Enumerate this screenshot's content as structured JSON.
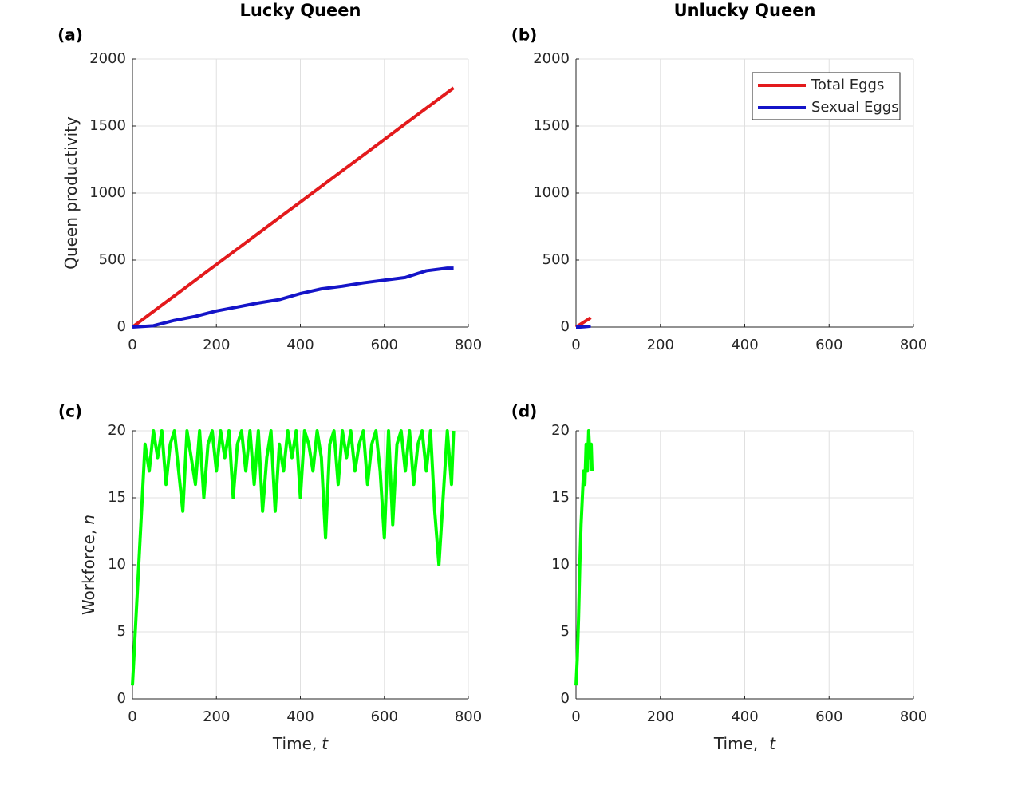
{
  "chart_data": [
    {
      "type": "line",
      "title": "Lucky Queen",
      "panel": "(a)",
      "ylabel": "Queen productivity",
      "x": [
        0,
        50,
        100,
        150,
        200,
        250,
        300,
        350,
        400,
        450,
        500,
        550,
        600,
        650,
        700,
        750,
        765
      ],
      "series": [
        {
          "color": "#e31a1c",
          "values": [
            0,
            117,
            233,
            350,
            467,
            583,
            700,
            817,
            933,
            1050,
            1167,
            1283,
            1400,
            1517,
            1633,
            1750,
            1785
          ]
        },
        {
          "color": "#1414c8",
          "values": [
            0,
            10,
            50,
            80,
            120,
            150,
            180,
            205,
            250,
            285,
            305,
            330,
            350,
            370,
            420,
            440,
            440
          ]
        }
      ],
      "xlim": [
        0,
        800
      ],
      "ylim": [
        0,
        2000
      ],
      "xticks": [
        0,
        200,
        400,
        600,
        800
      ],
      "yticks": [
        0,
        500,
        1000,
        1500,
        2000
      ],
      "grid": true
    },
    {
      "type": "line",
      "title": "Unlucky Queen",
      "panel": "(b)",
      "legend": "northeast",
      "x": [
        0,
        10,
        20,
        30,
        35
      ],
      "series": [
        {
          "name": "Total Eggs",
          "color": "#e31a1c",
          "values": [
            0,
            20,
            40,
            60,
            70
          ]
        },
        {
          "name": "Sexual Eggs",
          "color": "#1414c8",
          "values": [
            0,
            0,
            2,
            5,
            8
          ]
        }
      ],
      "xlim": [
        0,
        800
      ],
      "ylim": [
        0,
        2000
      ],
      "xticks": [
        0,
        200,
        400,
        600,
        800
      ],
      "yticks": [
        0,
        500,
        1000,
        1500,
        2000
      ],
      "grid": true
    },
    {
      "type": "line",
      "panel": "(c)",
      "ylabel": "Workforce,",
      "ylabel_italic": "n",
      "xlabel": "Time,",
      "xlabel_italic": "t",
      "x": [
        0,
        10,
        20,
        30,
        40,
        50,
        60,
        70,
        80,
        90,
        100,
        110,
        120,
        130,
        140,
        150,
        160,
        170,
        180,
        190,
        200,
        210,
        220,
        230,
        240,
        250,
        260,
        270,
        280,
        290,
        300,
        310,
        320,
        330,
        340,
        350,
        360,
        370,
        380,
        390,
        400,
        410,
        420,
        430,
        440,
        450,
        460,
        470,
        480,
        490,
        500,
        510,
        520,
        530,
        540,
        550,
        560,
        570,
        580,
        590,
        600,
        610,
        620,
        630,
        640,
        650,
        660,
        670,
        680,
        690,
        700,
        710,
        720,
        730,
        740,
        750,
        760,
        765
      ],
      "series": [
        {
          "color": "#00ff00",
          "values": [
            1,
            7,
            13,
            19,
            17,
            20,
            18,
            20,
            16,
            19,
            20,
            17,
            14,
            20,
            18,
            16,
            20,
            15,
            19,
            20,
            17,
            20,
            18,
            20,
            15,
            19,
            20,
            17,
            20,
            16,
            20,
            14,
            18,
            20,
            14,
            19,
            17,
            20,
            18,
            20,
            15,
            20,
            19,
            17,
            20,
            18,
            12,
            19,
            20,
            16,
            20,
            18,
            20,
            17,
            19,
            20,
            16,
            19,
            20,
            17,
            12,
            20,
            13,
            19,
            20,
            17,
            20,
            16,
            19,
            20,
            17,
            20,
            14,
            10,
            15,
            20,
            16,
            20
          ]
        }
      ],
      "xlim": [
        0,
        800
      ],
      "ylim": [
        0,
        20
      ],
      "xticks": [
        0,
        200,
        400,
        600,
        800
      ],
      "yticks": [
        0,
        5,
        10,
        15,
        20
      ],
      "grid": true
    },
    {
      "type": "line",
      "panel": "(d)",
      "xlabel": "Time,",
      "xlabel_italic": "t",
      "x": [
        0,
        3,
        6,
        9,
        12,
        15,
        18,
        21,
        24,
        27,
        30,
        33,
        36,
        38
      ],
      "series": [
        {
          "color": "#00ff00",
          "values": [
            1,
            3,
            6,
            10,
            13,
            15,
            17,
            16,
            19,
            17,
            20,
            18,
            19,
            17
          ]
        }
      ],
      "xlim": [
        0,
        800
      ],
      "ylim": [
        0,
        20
      ],
      "xticks": [
        0,
        200,
        400,
        600,
        800
      ],
      "yticks": [
        0,
        5,
        10,
        15,
        20
      ],
      "grid": true
    }
  ]
}
